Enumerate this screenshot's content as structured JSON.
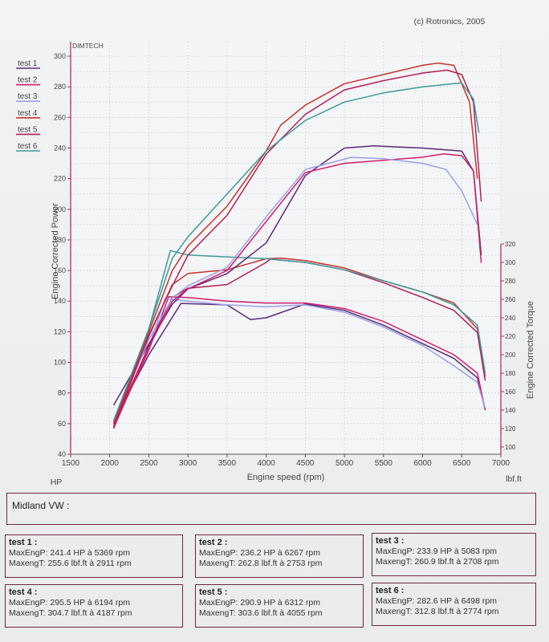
{
  "header": {
    "copyright": "(c) Rotronics, 2005",
    "brand": "DIMTECH"
  },
  "legend": [
    {
      "label": "test 1",
      "color": "#5a2a7a"
    },
    {
      "label": "test 2",
      "color": "#d0206a"
    },
    {
      "label": "test 3",
      "color": "#9aa0e8"
    },
    {
      "label": "test 4",
      "color": "#c8322e"
    },
    {
      "label": "test 5",
      "color": "#b0205a"
    },
    {
      "label": "test 6",
      "color": "#3f9a9a"
    }
  ],
  "chart_data": {
    "type": "line",
    "xlabel": "Engine speed (rpm)",
    "ylabel_left": "Engine Corrected Power",
    "ylabel_right": "Engine Corrected Torque",
    "unit_left": "HP",
    "unit_right": "lbf.ft",
    "xlim": [
      1500,
      7000
    ],
    "ylim_left": [
      40,
      310
    ],
    "ylim_right": [
      100,
      320
    ],
    "x_ticks": [
      1500,
      2000,
      2500,
      3000,
      3500,
      4000,
      4500,
      5000,
      5500,
      6000,
      6500,
      7000
    ],
    "y_ticks_left": [
      40,
      60,
      80,
      100,
      120,
      140,
      160,
      180,
      200,
      220,
      240,
      260,
      280,
      300
    ],
    "y_ticks_right": [
      100,
      120,
      140,
      160,
      180,
      200,
      220,
      240,
      260,
      280,
      300,
      320
    ],
    "grid": true,
    "power_series": [
      {
        "name": "test 1",
        "x": [
          2050,
          2500,
          2800,
          3000,
          3500,
          4000,
          4500,
          5000,
          5369,
          6000,
          6500,
          6650,
          6750
        ],
        "y": [
          72,
          112,
          138,
          148,
          158,
          178,
          222,
          240,
          241.4,
          240,
          238,
          225,
          170
        ]
      },
      {
        "name": "test 2",
        "x": [
          2050,
          2500,
          2800,
          3000,
          3500,
          4000,
          4500,
          5000,
          5500,
          6000,
          6267,
          6500,
          6650,
          6750
        ],
        "y": [
          57,
          110,
          140,
          148,
          160,
          192,
          224,
          230,
          232,
          234,
          236.2,
          235,
          225,
          165
        ]
      },
      {
        "name": "test 3",
        "x": [
          2050,
          2500,
          2800,
          3000,
          3500,
          4000,
          4500,
          5083,
          5500,
          6000,
          6300,
          6500,
          6700
        ],
        "y": [
          60,
          115,
          142,
          150,
          162,
          195,
          226,
          233.9,
          233,
          230,
          226,
          212,
          190
        ]
      },
      {
        "name": "test 4",
        "x": [
          2050,
          2500,
          2800,
          3000,
          3500,
          4000,
          4187,
          4500,
          5000,
          5500,
          6000,
          6194,
          6400,
          6600,
          6700
        ],
        "y": [
          60,
          120,
          160,
          176,
          202,
          238,
          255,
          268,
          282,
          288,
          294,
          295.5,
          294,
          270,
          220
        ]
      },
      {
        "name": "test 5",
        "x": [
          2050,
          2500,
          2800,
          3000,
          3500,
          4000,
          4500,
          5000,
          5500,
          6000,
          6312,
          6500,
          6650,
          6750
        ],
        "y": [
          58,
          118,
          150,
          170,
          196,
          236,
          262,
          278,
          284,
          289,
          290.9,
          288,
          270,
          205
        ]
      },
      {
        "name": "test 6",
        "x": [
          2050,
          2500,
          2800,
          3000,
          3500,
          4000,
          4500,
          5000,
          5500,
          6000,
          6498,
          6650,
          6720
        ],
        "y": [
          62,
          122,
          168,
          182,
          210,
          238,
          258,
          270,
          276,
          280,
          282.6,
          272,
          250
        ]
      }
    ],
    "torque_series": [
      {
        "name": "test 1",
        "x": [
          2050,
          2500,
          2911,
          3500,
          3800,
          4000,
          4500,
          5000,
          5500,
          6000,
          6400,
          6700,
          6800
        ],
        "y": [
          128,
          200,
          255.6,
          254,
          238,
          240,
          255,
          248,
          232,
          212,
          196,
          175,
          140
        ]
      },
      {
        "name": "test 2",
        "x": [
          2050,
          2500,
          2753,
          3000,
          3500,
          4000,
          4500,
          5000,
          5500,
          6000,
          6400,
          6700,
          6800
        ],
        "y": [
          122,
          205,
          262.8,
          262,
          258,
          256,
          256,
          250,
          236,
          216,
          200,
          180,
          140
        ]
      },
      {
        "name": "test 3",
        "x": [
          2050,
          2500,
          2708,
          3000,
          3500,
          4000,
          4500,
          5000,
          5500,
          6000,
          6400,
          6700,
          6800
        ],
        "y": [
          124,
          208,
          260.9,
          258,
          254,
          252,
          254,
          246,
          230,
          210,
          188,
          170,
          142
        ]
      },
      {
        "name": "test 4",
        "x": [
          2050,
          2500,
          2800,
          3000,
          3500,
          4000,
          4187,
          4500,
          5000,
          5500,
          6000,
          6400,
          6700,
          6800
        ],
        "y": [
          120,
          220,
          276,
          288,
          292,
          304,
          304.7,
          302,
          294,
          280,
          268,
          256,
          228,
          176
        ]
      },
      {
        "name": "test 5",
        "x": [
          2050,
          2500,
          2800,
          3000,
          3500,
          4000,
          4055,
          4500,
          5000,
          5500,
          6000,
          6400,
          6700,
          6800
        ],
        "y": [
          122,
          210,
          262,
          272,
          276,
          300,
          303.6,
          300,
          292,
          278,
          262,
          248,
          224,
          172
        ]
      },
      {
        "name": "test 6",
        "x": [
          2050,
          2500,
          2774,
          3000,
          3500,
          4000,
          4500,
          5000,
          5500,
          6000,
          6400,
          6700,
          6800
        ],
        "y": [
          126,
          228,
          312.8,
          308,
          306,
          304,
          300,
          292,
          280,
          268,
          254,
          232,
          180
        ]
      }
    ]
  },
  "vehicle": "Midland VW :",
  "results": [
    {
      "title": "test 1 :",
      "power": "MaxEngP: 241.4 HP à 5369 rpm",
      "torque": "MaxengT: 255.6 lbf.ft à 2911 rpm"
    },
    {
      "title": "test 2 :",
      "power": "MaxEngP: 236.2 HP à 6267 rpm",
      "torque": "MaxengT: 262.8 lbf.ft à 2753 rpm"
    },
    {
      "title": "test 3 :",
      "power": "MaxEngP: 233.9 HP à 5083 rpm",
      "torque": "MaxengT: 260.9 lbf.ft à 2708 rpm"
    },
    {
      "title": "test 4 :",
      "power": "MaxEngP: 295.5 HP à 6194 rpm",
      "torque": "MaxengT: 304.7 lbf.ft à 4187 rpm"
    },
    {
      "title": "test 5 :",
      "power": "MaxEngP: 290.9 HP à 6312 rpm",
      "torque": "MaxengT: 303.6 lbf.ft à 4055 rpm"
    },
    {
      "title": "test 6 :",
      "power": "MaxEngP: 282.6 HP à 6498 rpm",
      "torque": "MaxengT: 312.8 lbf.ft à 2774 rpm"
    }
  ]
}
